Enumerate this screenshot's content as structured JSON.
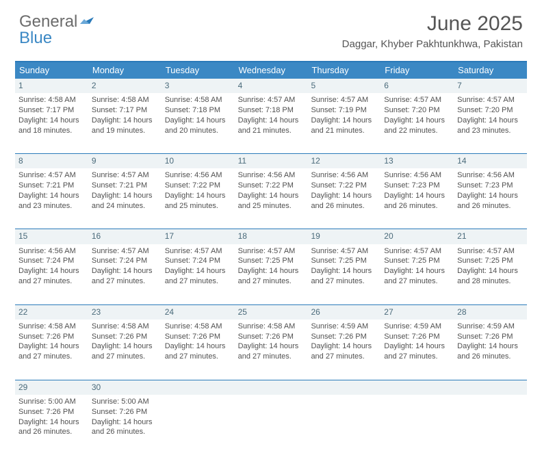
{
  "logo": {
    "general": "General",
    "blue": "Blue"
  },
  "title": "June 2025",
  "location": "Daggar, Khyber Pakhtunkhwa, Pakistan",
  "colors": {
    "header_blue": "#3b88c4",
    "border_blue": "#2a7ab9",
    "daynum_bg": "#eef3f5",
    "text": "#505050"
  },
  "dow": [
    "Sunday",
    "Monday",
    "Tuesday",
    "Wednesday",
    "Thursday",
    "Friday",
    "Saturday"
  ],
  "weeks": [
    [
      {
        "n": "1",
        "sr": "Sunrise: 4:58 AM",
        "ss": "Sunset: 7:17 PM",
        "dl": "Daylight: 14 hours and 18 minutes."
      },
      {
        "n": "2",
        "sr": "Sunrise: 4:58 AM",
        "ss": "Sunset: 7:17 PM",
        "dl": "Daylight: 14 hours and 19 minutes."
      },
      {
        "n": "3",
        "sr": "Sunrise: 4:58 AM",
        "ss": "Sunset: 7:18 PM",
        "dl": "Daylight: 14 hours and 20 minutes."
      },
      {
        "n": "4",
        "sr": "Sunrise: 4:57 AM",
        "ss": "Sunset: 7:18 PM",
        "dl": "Daylight: 14 hours and 21 minutes."
      },
      {
        "n": "5",
        "sr": "Sunrise: 4:57 AM",
        "ss": "Sunset: 7:19 PM",
        "dl": "Daylight: 14 hours and 21 minutes."
      },
      {
        "n": "6",
        "sr": "Sunrise: 4:57 AM",
        "ss": "Sunset: 7:20 PM",
        "dl": "Daylight: 14 hours and 22 minutes."
      },
      {
        "n": "7",
        "sr": "Sunrise: 4:57 AM",
        "ss": "Sunset: 7:20 PM",
        "dl": "Daylight: 14 hours and 23 minutes."
      }
    ],
    [
      {
        "n": "8",
        "sr": "Sunrise: 4:57 AM",
        "ss": "Sunset: 7:21 PM",
        "dl": "Daylight: 14 hours and 23 minutes."
      },
      {
        "n": "9",
        "sr": "Sunrise: 4:57 AM",
        "ss": "Sunset: 7:21 PM",
        "dl": "Daylight: 14 hours and 24 minutes."
      },
      {
        "n": "10",
        "sr": "Sunrise: 4:56 AM",
        "ss": "Sunset: 7:22 PM",
        "dl": "Daylight: 14 hours and 25 minutes."
      },
      {
        "n": "11",
        "sr": "Sunrise: 4:56 AM",
        "ss": "Sunset: 7:22 PM",
        "dl": "Daylight: 14 hours and 25 minutes."
      },
      {
        "n": "12",
        "sr": "Sunrise: 4:56 AM",
        "ss": "Sunset: 7:22 PM",
        "dl": "Daylight: 14 hours and 26 minutes."
      },
      {
        "n": "13",
        "sr": "Sunrise: 4:56 AM",
        "ss": "Sunset: 7:23 PM",
        "dl": "Daylight: 14 hours and 26 minutes."
      },
      {
        "n": "14",
        "sr": "Sunrise: 4:56 AM",
        "ss": "Sunset: 7:23 PM",
        "dl": "Daylight: 14 hours and 26 minutes."
      }
    ],
    [
      {
        "n": "15",
        "sr": "Sunrise: 4:56 AM",
        "ss": "Sunset: 7:24 PM",
        "dl": "Daylight: 14 hours and 27 minutes."
      },
      {
        "n": "16",
        "sr": "Sunrise: 4:57 AM",
        "ss": "Sunset: 7:24 PM",
        "dl": "Daylight: 14 hours and 27 minutes."
      },
      {
        "n": "17",
        "sr": "Sunrise: 4:57 AM",
        "ss": "Sunset: 7:24 PM",
        "dl": "Daylight: 14 hours and 27 minutes."
      },
      {
        "n": "18",
        "sr": "Sunrise: 4:57 AM",
        "ss": "Sunset: 7:25 PM",
        "dl": "Daylight: 14 hours and 27 minutes."
      },
      {
        "n": "19",
        "sr": "Sunrise: 4:57 AM",
        "ss": "Sunset: 7:25 PM",
        "dl": "Daylight: 14 hours and 27 minutes."
      },
      {
        "n": "20",
        "sr": "Sunrise: 4:57 AM",
        "ss": "Sunset: 7:25 PM",
        "dl": "Daylight: 14 hours and 27 minutes."
      },
      {
        "n": "21",
        "sr": "Sunrise: 4:57 AM",
        "ss": "Sunset: 7:25 PM",
        "dl": "Daylight: 14 hours and 28 minutes."
      }
    ],
    [
      {
        "n": "22",
        "sr": "Sunrise: 4:58 AM",
        "ss": "Sunset: 7:26 PM",
        "dl": "Daylight: 14 hours and 27 minutes."
      },
      {
        "n": "23",
        "sr": "Sunrise: 4:58 AM",
        "ss": "Sunset: 7:26 PM",
        "dl": "Daylight: 14 hours and 27 minutes."
      },
      {
        "n": "24",
        "sr": "Sunrise: 4:58 AM",
        "ss": "Sunset: 7:26 PM",
        "dl": "Daylight: 14 hours and 27 minutes."
      },
      {
        "n": "25",
        "sr": "Sunrise: 4:58 AM",
        "ss": "Sunset: 7:26 PM",
        "dl": "Daylight: 14 hours and 27 minutes."
      },
      {
        "n": "26",
        "sr": "Sunrise: 4:59 AM",
        "ss": "Sunset: 7:26 PM",
        "dl": "Daylight: 14 hours and 27 minutes."
      },
      {
        "n": "27",
        "sr": "Sunrise: 4:59 AM",
        "ss": "Sunset: 7:26 PM",
        "dl": "Daylight: 14 hours and 27 minutes."
      },
      {
        "n": "28",
        "sr": "Sunrise: 4:59 AM",
        "ss": "Sunset: 7:26 PM",
        "dl": "Daylight: 14 hours and 26 minutes."
      }
    ],
    [
      {
        "n": "29",
        "sr": "Sunrise: 5:00 AM",
        "ss": "Sunset: 7:26 PM",
        "dl": "Daylight: 14 hours and 26 minutes."
      },
      {
        "n": "30",
        "sr": "Sunrise: 5:00 AM",
        "ss": "Sunset: 7:26 PM",
        "dl": "Daylight: 14 hours and 26 minutes."
      },
      null,
      null,
      null,
      null,
      null
    ]
  ]
}
